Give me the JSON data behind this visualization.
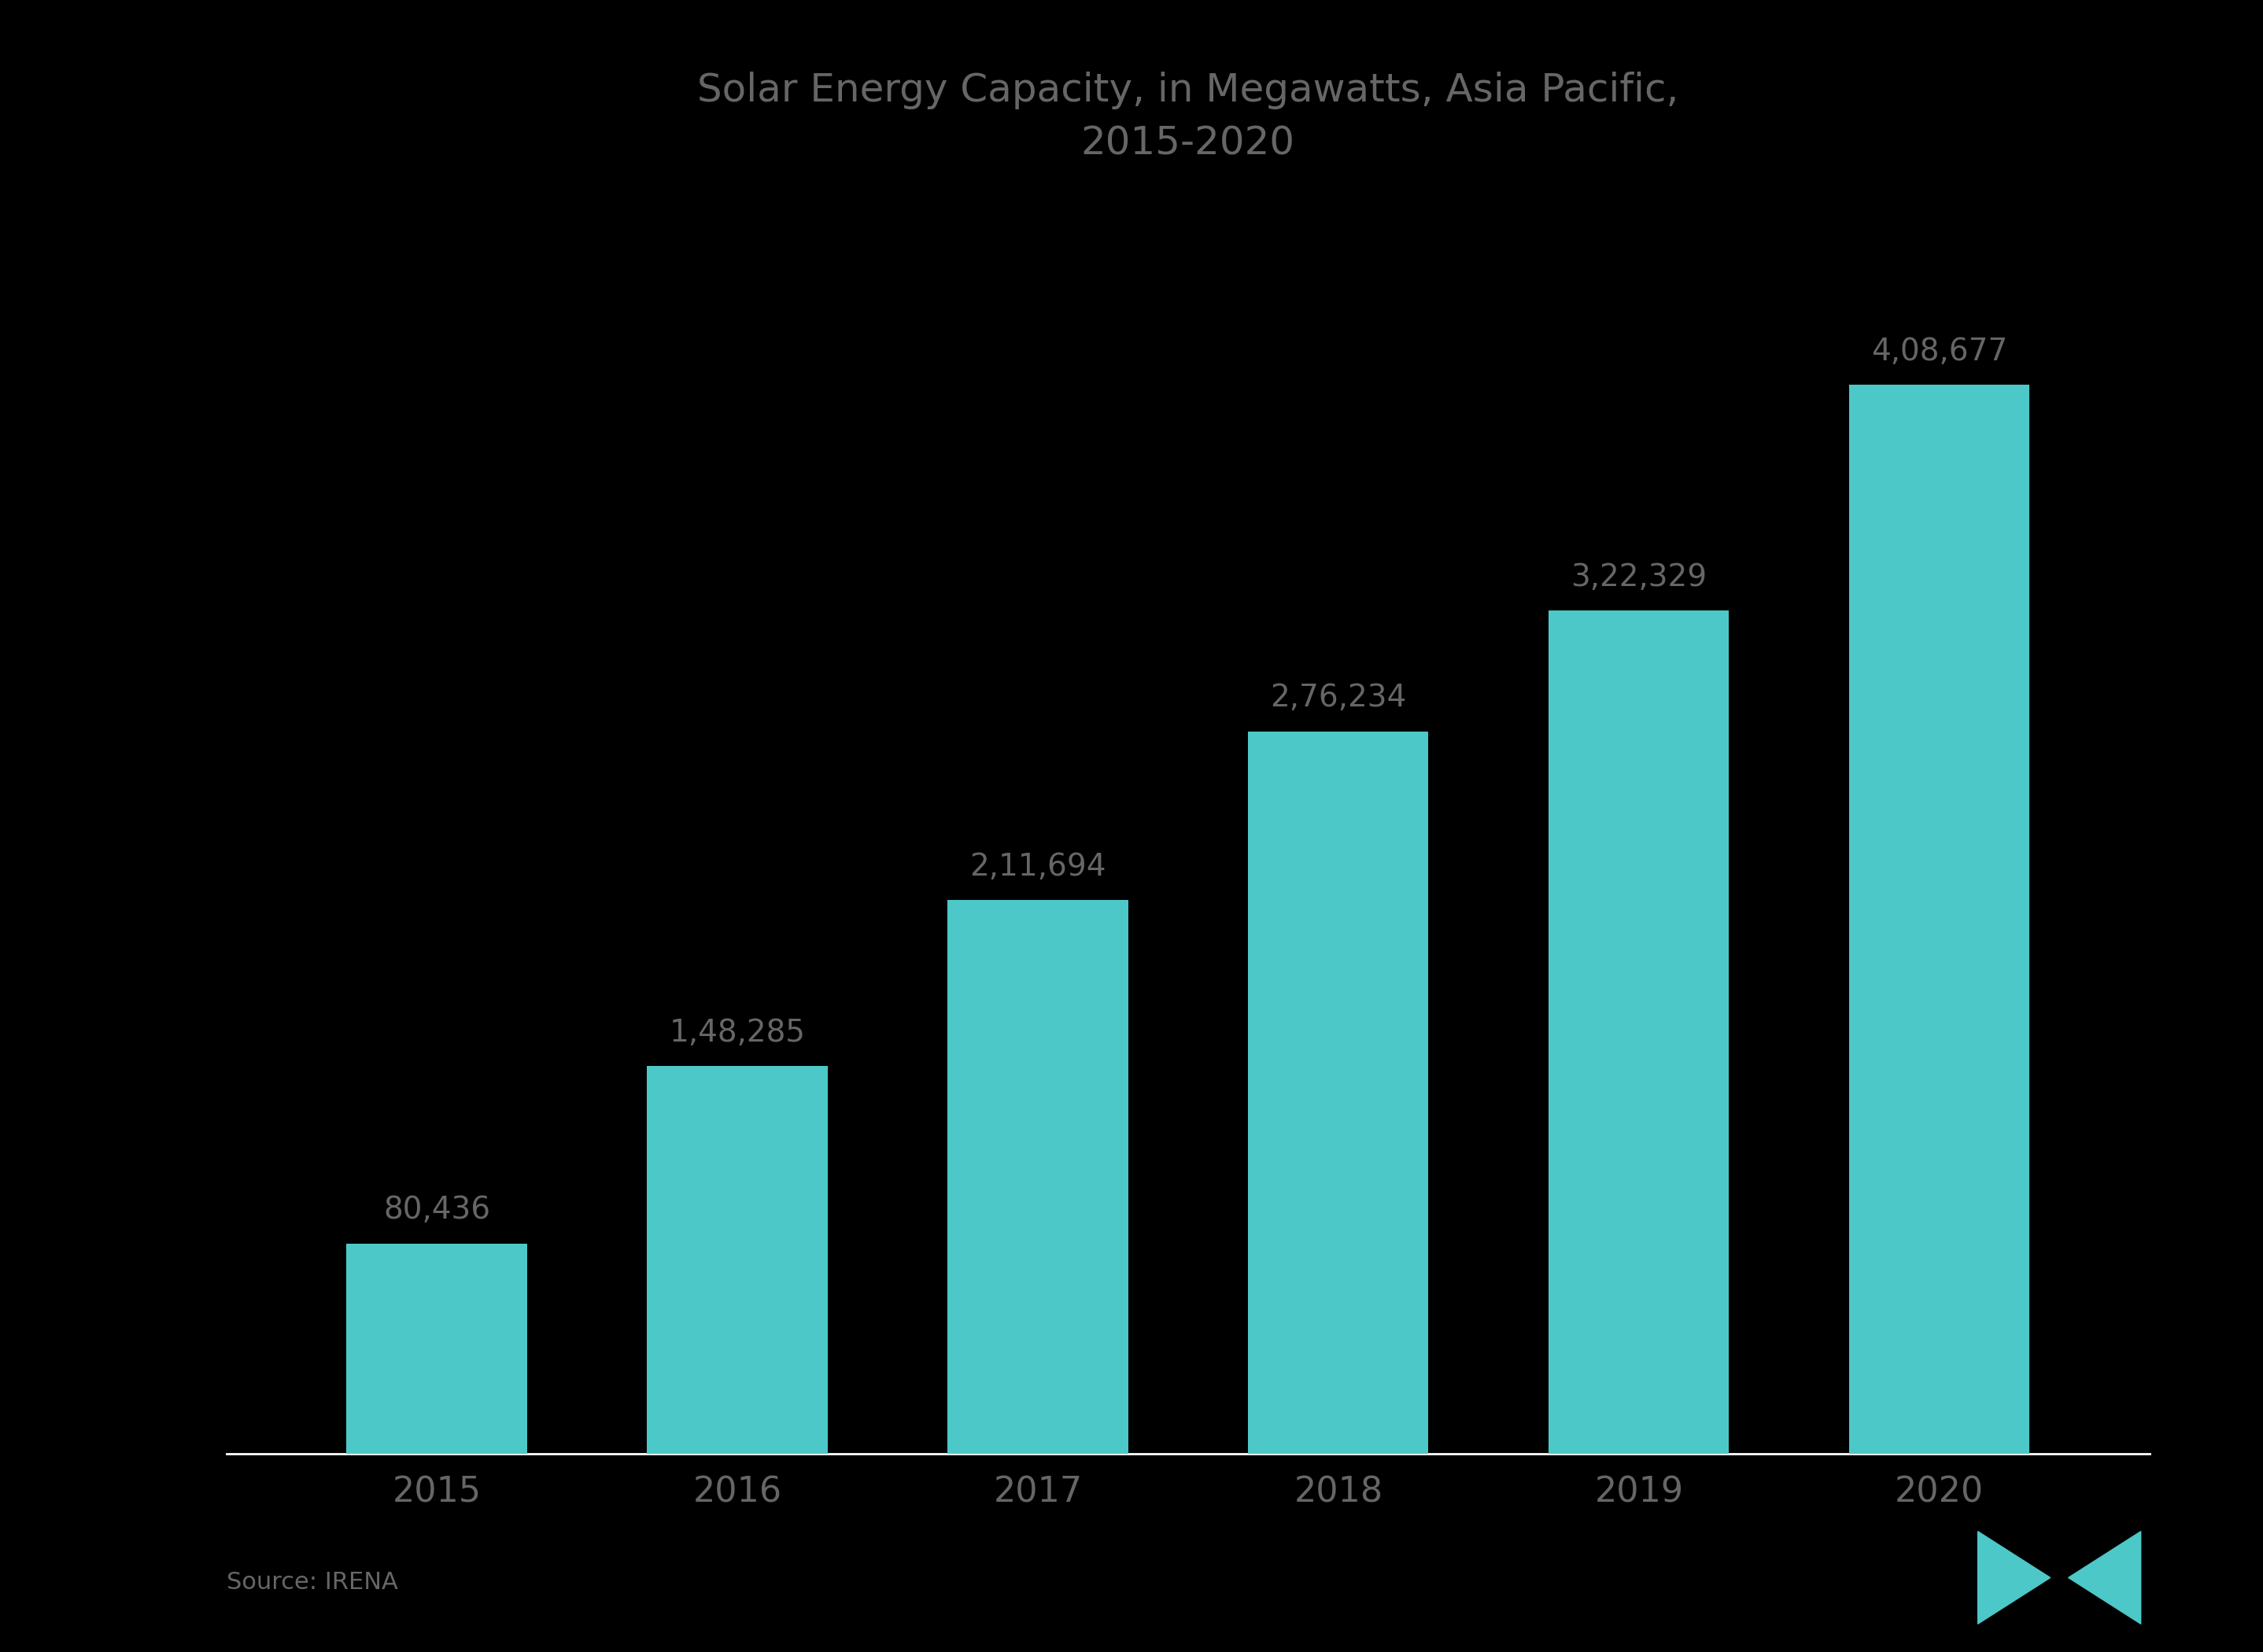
{
  "title": "Solar Energy Capacity, in Megawatts, Asia Pacific,\n2015-2020",
  "categories": [
    "2015",
    "2016",
    "2017",
    "2018",
    "2019",
    "2020"
  ],
  "values": [
    80436,
    148285,
    211694,
    276234,
    322329,
    408677
  ],
  "bar_labels": [
    "80,436",
    "1,48,285",
    "2,11,694",
    "2,76,234",
    "3,22,329",
    "4,08,677"
  ],
  "bar_color": "#4DC8C8",
  "background_color": "#000000",
  "text_color": "#666666",
  "axis_line_color": "#ffffff",
  "title_color": "#666666",
  "source_text": "Source: IRENA",
  "ylim": [
    0,
    480000
  ],
  "title_fontsize": 36,
  "label_fontsize": 28,
  "tick_fontsize": 32,
  "source_fontsize": 22,
  "bar_width": 0.6
}
